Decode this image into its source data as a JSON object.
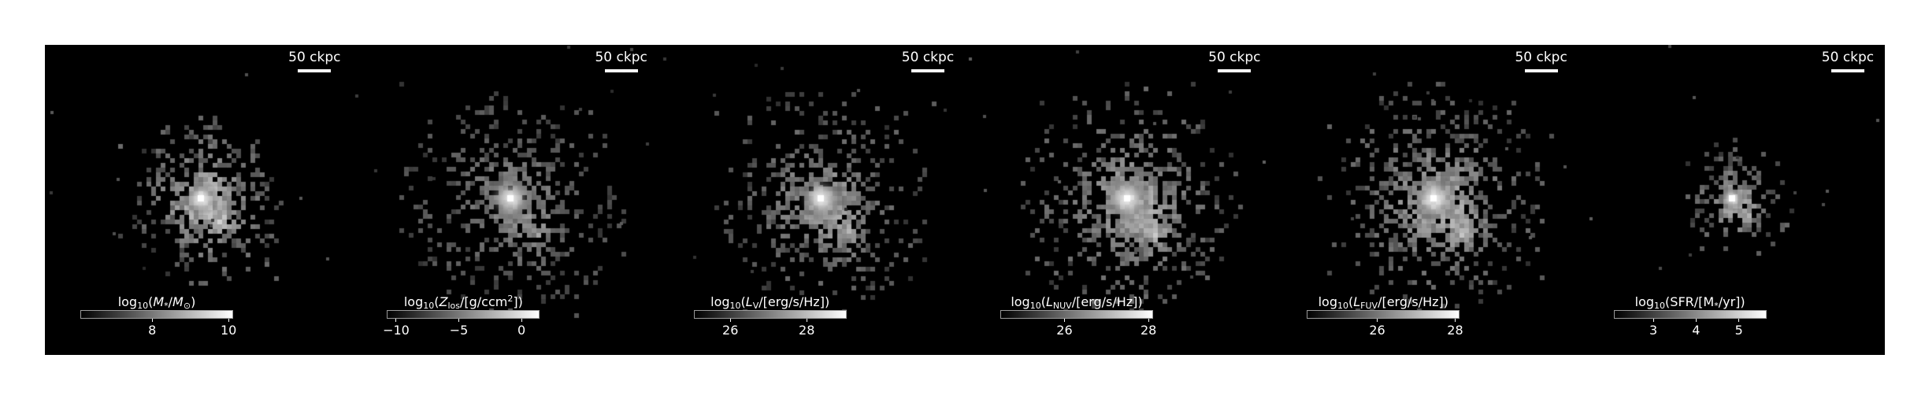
{
  "panels": [
    {
      "scalebar_label": "50 ckpc",
      "colorbar_label": {
        "prefix": "log",
        "sub": "10",
        "open": "(",
        "var": "M",
        "var_sub": "*",
        "sep": "/",
        "unit": "M",
        "unit_sub": "⊙",
        "unit_sup": "",
        "unit_tail": ")"
      },
      "ticks": [
        {
          "label": "8",
          "frac": 0.47
        },
        {
          "label": "10",
          "frac": 0.97
        }
      ],
      "galaxy": {
        "extent": 0.82,
        "core": 0.95,
        "brightness": 0.8,
        "center": [
          0.51,
          0.52
        ]
      }
    },
    {
      "scalebar_label": "50 ckpc",
      "colorbar_label": {
        "prefix": "log",
        "sub": "10",
        "open": "(",
        "var": "Z",
        "var_sub": "los",
        "sep": "/[",
        "unit": "g/ccm",
        "unit_sub": "",
        "unit_sup": "2",
        "unit_tail": "])"
      },
      "ticks": [
        {
          "label": "−10",
          "frac": 0.06
        },
        {
          "label": "−5",
          "frac": 0.47
        },
        {
          "label": "0",
          "frac": 0.88
        }
      ],
      "galaxy": {
        "extent": 1.15,
        "core": 0.95,
        "brightness": 0.55,
        "center": [
          0.52,
          0.52
        ]
      }
    },
    {
      "scalebar_label": "50 ckpc",
      "colorbar_label": {
        "prefix": "log",
        "sub": "10",
        "open": "(",
        "var": "L",
        "var_sub": "V",
        "sep": "/[",
        "unit": "erg/s/Hz",
        "unit_sub": "",
        "unit_sup": "",
        "unit_tail": "])"
      },
      "ticks": [
        {
          "label": "26",
          "frac": 0.24
        },
        {
          "label": "28",
          "frac": 0.74
        }
      ],
      "galaxy": {
        "extent": 1.1,
        "core": 0.9,
        "brightness": 0.65,
        "center": [
          0.53,
          0.52
        ]
      }
    },
    {
      "scalebar_label": "50 ckpc",
      "colorbar_label": {
        "prefix": "log",
        "sub": "10",
        "open": "(",
        "var": "L",
        "var_sub": "NUV",
        "sep": "/[",
        "unit": "erg/s/Hz",
        "unit_sub": "",
        "unit_sup": "",
        "unit_tail": "])"
      },
      "ticks": [
        {
          "label": "26",
          "frac": 0.42
        },
        {
          "label": "28",
          "frac": 0.97
        }
      ],
      "galaxy": {
        "extent": 1.15,
        "core": 0.85,
        "brightness": 0.7,
        "center": [
          0.53,
          0.52
        ]
      }
    },
    {
      "scalebar_label": "50 ckpc",
      "colorbar_label": {
        "prefix": "log",
        "sub": "10",
        "open": "(",
        "var": "L",
        "var_sub": "FUV",
        "sep": "/[",
        "unit": "erg/s/Hz",
        "unit_sub": "",
        "unit_sup": "",
        "unit_tail": "])"
      },
      "ticks": [
        {
          "label": "26",
          "frac": 0.46
        },
        {
          "label": "28",
          "frac": 0.97
        }
      ],
      "galaxy": {
        "extent": 1.15,
        "core": 0.85,
        "brightness": 0.7,
        "center": [
          0.53,
          0.52
        ]
      }
    },
    {
      "scalebar_label": "50 ckpc",
      "colorbar_label": {
        "prefix": "log",
        "sub": "10",
        "open": "(",
        "var": "SFR",
        "var_sub": "",
        "sep": "/[",
        "unit": "M",
        "unit_sub": "*",
        "unit_sup": "",
        "unit_tail": "/yr])"
      },
      "ticks": [
        {
          "label": "3",
          "frac": 0.26
        },
        {
          "label": "4",
          "frac": 0.54
        },
        {
          "label": "5",
          "frac": 0.82
        }
      ],
      "galaxy": {
        "extent": 0.6,
        "core": 0.9,
        "brightness": 0.7,
        "center": [
          0.5,
          0.52
        ]
      }
    }
  ]
}
